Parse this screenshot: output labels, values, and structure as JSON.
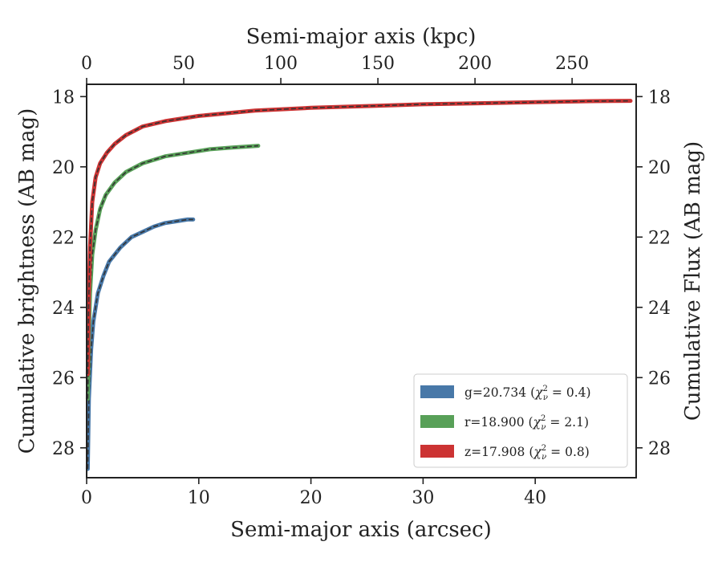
{
  "chart_data": {
    "type": "line",
    "xlabel": "Semi-major axis (arcsec)",
    "x2label": "Semi-major axis (kpc)",
    "ylabel": "Cumulative brightness (AB mag)",
    "y2label": "Cumulative Flux (AB mag)",
    "xlim": [
      0,
      49
    ],
    "x2lim": [
      0,
      283
    ],
    "ylim": [
      28.85,
      17.65
    ],
    "xticks": [
      "0",
      "10",
      "20",
      "30",
      "40"
    ],
    "x2ticks": [
      "0",
      "50",
      "100",
      "150",
      "200",
      "250"
    ],
    "yticks": [
      "18",
      "20",
      "22",
      "24",
      "26",
      "28"
    ],
    "legend_position": "lower right",
    "series": [
      {
        "name": "g=20.734 (χ²_ν = 0.4)",
        "legend_main": "g=20.734 (",
        "legend_chi": "χ",
        "legend_sup": "2",
        "legend_sub": "ν",
        "legend_tail": " = 0.4)",
        "color": "#4878a8",
        "x": [
          0.1,
          0.2,
          0.4,
          0.6,
          1.0,
          1.5,
          2.0,
          3.0,
          4.0,
          5.0,
          6.0,
          7.0,
          8.0,
          9.0,
          9.5
        ],
        "y": [
          28.6,
          26.6,
          25.2,
          24.4,
          23.6,
          23.1,
          22.7,
          22.3,
          22.0,
          21.85,
          21.7,
          21.6,
          21.55,
          21.5,
          21.5
        ]
      },
      {
        "name": "r=18.900 (χ²_ν = 2.1)",
        "legend_main": "r=18.900 (",
        "legend_chi": "χ",
        "legend_sup": "2",
        "legend_sub": "ν",
        "legend_tail": " = 2.1)",
        "color": "#58a058",
        "x": [
          0.1,
          0.2,
          0.3,
          0.5,
          0.8,
          1.2,
          1.7,
          2.5,
          3.5,
          5.0,
          7.0,
          9.0,
          11.0,
          13.0,
          15.3
        ],
        "y": [
          26.6,
          24.8,
          23.6,
          22.5,
          21.8,
          21.2,
          20.8,
          20.45,
          20.15,
          19.9,
          19.7,
          19.6,
          19.5,
          19.45,
          19.4
        ]
      },
      {
        "name": "z=17.908 (χ²_ν = 0.8)",
        "legend_main": "z=17.908 (",
        "legend_chi": "χ",
        "legend_sup": "2",
        "legend_sub": "ν",
        "legend_tail": " = 0.8)",
        "color": "#cc3333",
        "x": [
          0.1,
          0.2,
          0.3,
          0.5,
          0.8,
          1.2,
          1.8,
          2.5,
          3.5,
          5.0,
          7.0,
          10.0,
          15.0,
          20.0,
          25.0,
          30.0,
          35.0,
          40.0,
          45.0,
          48.5
        ],
        "y": [
          25.9,
          23.6,
          22.3,
          21.0,
          20.3,
          19.9,
          19.6,
          19.35,
          19.1,
          18.85,
          18.7,
          18.55,
          18.4,
          18.32,
          18.27,
          18.22,
          18.19,
          18.16,
          18.13,
          18.12
        ]
      }
    ]
  }
}
